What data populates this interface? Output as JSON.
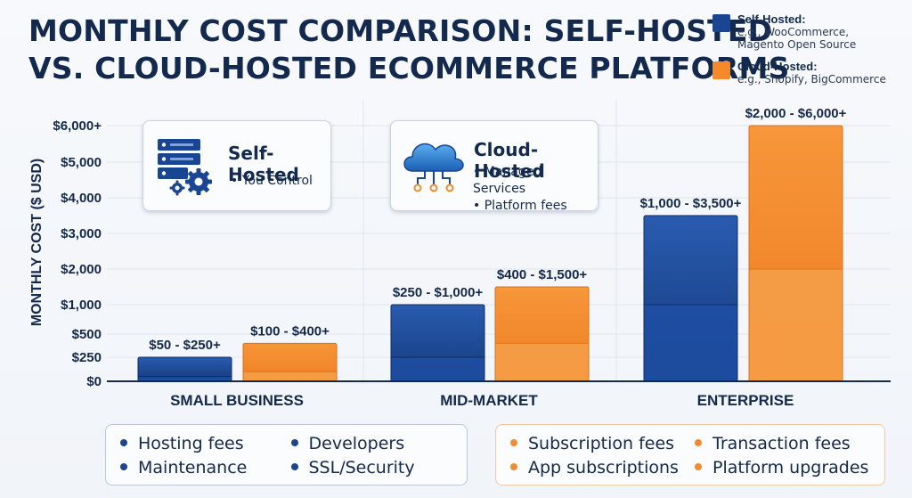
{
  "title_line1": "MONTHLY COST COMPARISON: SELF-HOSTED",
  "title_line2": "VS. CLOUD-HOSTED ECOMMERCE PLATFORMS",
  "legend": [
    {
      "name": "Self-Hosted:",
      "desc1": "e.g., WooCommerce,",
      "desc2": "Magento Open Source",
      "color": "#1a4592"
    },
    {
      "name": "Cloud-Hosted:",
      "desc1": "e.g., Shopify, BigCommerce",
      "desc2": "",
      "color": "#f58a2c"
    }
  ],
  "callouts": {
    "self": {
      "title": "Self-Hosted",
      "bullets": [
        "You Control"
      ],
      "icon": "server-gear-icon"
    },
    "cloud": {
      "title": "Cloud-Hosted",
      "bullets": [
        "Managed Services",
        "Platform fees"
      ],
      "icon": "cloud-network-icon"
    }
  },
  "chart_data": {
    "type": "bar",
    "ylabel": "MONTHLY COST ($ USD)",
    "categories": [
      "SMALL BUSINESS",
      "MID-MARKET",
      "ENTERPRISE"
    ],
    "yticks": [
      "$0",
      "$250",
      "$500",
      "$1,000",
      "$2,000",
      "$3,000",
      "$4,000",
      "$5,000",
      "$6,000+"
    ],
    "series": [
      {
        "name": "Self-Hosted",
        "color": "#1a4592",
        "ranges": [
          [
            50,
            250
          ],
          [
            250,
            1000
          ],
          [
            1000,
            3500
          ]
        ],
        "range_labels": [
          "$50 - $250+",
          "$250 - $1,000+",
          "$1,000 - $3,500+"
        ]
      },
      {
        "name": "Cloud-Hosted",
        "color": "#f58a2c",
        "ranges": [
          [
            100,
            400
          ],
          [
            400,
            1500
          ],
          [
            2000,
            6000
          ]
        ],
        "range_labels": [
          "$100 - $400+",
          "$400 - $1,500+",
          "$2,000 - $6,000+"
        ]
      }
    ]
  },
  "cost_boxes": {
    "self": {
      "items": [
        "Hosting fees",
        "Developers",
        "Maintenance",
        "SSL/Security"
      ],
      "color": "#1a4592",
      "border": "#b9c8de"
    },
    "cloud": {
      "items": [
        "Subscription fees",
        "Transaction fees",
        "App subscriptions",
        "Platform upgrades"
      ],
      "color": "#f58a2c",
      "border": "#f5c9a3"
    }
  }
}
